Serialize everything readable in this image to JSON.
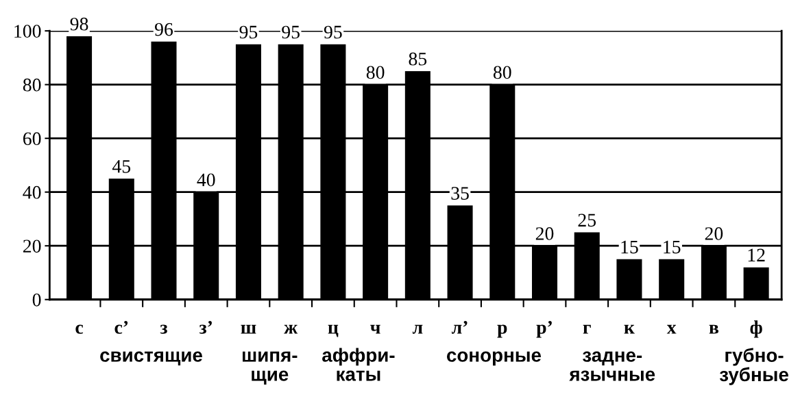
{
  "chart_data": {
    "type": "bar",
    "categories": [
      "с",
      "с’",
      "з",
      "з’",
      "ш",
      "ж",
      "ц",
      "ч",
      "л",
      "л’",
      "р",
      "р’",
      "г",
      "к",
      "х",
      "в",
      "ф"
    ],
    "values": [
      98,
      45,
      96,
      40,
      95,
      95,
      95,
      80,
      85,
      35,
      80,
      20,
      25,
      15,
      15,
      20,
      12
    ],
    "color": "#000000",
    "ylim": [
      0,
      100
    ],
    "yticks": [
      0,
      20,
      40,
      60,
      80,
      100
    ],
    "grid": "y",
    "data_labels": true,
    "annotations": [
      "свистящие",
      "шипя-\nщие",
      "аффри-\nкаты",
      "сонорные",
      "задне-\nязычные",
      "губно-\nзубные"
    ]
  }
}
